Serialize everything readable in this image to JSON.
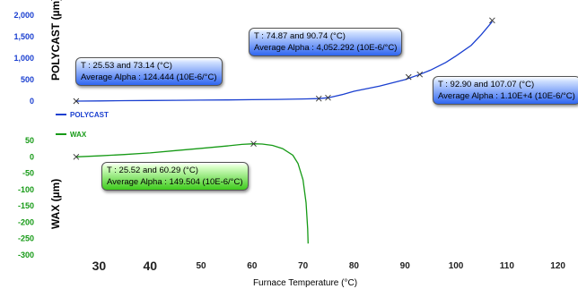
{
  "colors": {
    "polycast": "#1a3fd0",
    "wax": "#169a16"
  },
  "chart_data": [
    {
      "type": "line",
      "name": "top-panel",
      "ylabel": "POLYCAST (µm)",
      "ylim": [
        0,
        2000
      ],
      "y_ticks": [
        "2,000",
        "1,500",
        "1,000",
        "500",
        "0"
      ],
      "series": [
        {
          "name": "POLYCAST",
          "color": "#1a3fd0",
          "points": [
            [
              25.5,
              0
            ],
            [
              30,
              5
            ],
            [
              35,
              10
            ],
            [
              40,
              14
            ],
            [
              45,
              18
            ],
            [
              50,
              22
            ],
            [
              55,
              28
            ],
            [
              60,
              34
            ],
            [
              65,
              40
            ],
            [
              70,
              50
            ],
            [
              73.1,
              58
            ],
            [
              75,
              80
            ],
            [
              78,
              160
            ],
            [
              80,
              230
            ],
            [
              85,
              350
            ],
            [
              90,
              500
            ],
            [
              92.9,
              620
            ],
            [
              95,
              720
            ],
            [
              98,
              900
            ],
            [
              100,
              1050
            ],
            [
              103,
              1300
            ],
            [
              105,
              1550
            ],
            [
              107.1,
              1850
            ]
          ],
          "markers": [
            [
              25.5,
              0
            ],
            [
              73.1,
              58
            ],
            [
              74.9,
              80
            ],
            [
              90.7,
              560
            ],
            [
              92.9,
              620
            ],
            [
              107.1,
              1880
            ]
          ]
        }
      ],
      "annotations": [
        {
          "line1": "T : 25.53 and 73.14 (°C)",
          "line2": "Average Alpha :  124.444 (10E-6/°C)"
        },
        {
          "line1": "T : 74.87 and 90.74 (°C)",
          "line2": "Average Alpha : 4,052.292 (10E-6/°C)"
        },
        {
          "line1": "T : 92.90 and 107.07 (°C)",
          "line2": "Average Alpha : 1.10E+4 (10E-6/°C)"
        }
      ]
    },
    {
      "type": "line",
      "name": "bottom-panel",
      "ylabel": "WAX (µm)",
      "ylim": [
        -300,
        50
      ],
      "y_ticks": [
        "50",
        "0",
        "-50",
        "-100",
        "-150",
        "-200",
        "-250",
        "-300"
      ],
      "series": [
        {
          "name": "WAX",
          "color": "#169a16",
          "points": [
            [
              25.5,
              0
            ],
            [
              30,
              3
            ],
            [
              35,
              7
            ],
            [
              40,
              12
            ],
            [
              45,
              19
            ],
            [
              50,
              26
            ],
            [
              55,
              33
            ],
            [
              58,
              38
            ],
            [
              60.3,
              40
            ],
            [
              62,
              39
            ],
            [
              64,
              35
            ],
            [
              66,
              25
            ],
            [
              68,
              5
            ],
            [
              69,
              -20
            ],
            [
              70,
              -70
            ],
            [
              70.6,
              -140
            ],
            [
              70.9,
              -220
            ],
            [
              71.0,
              -265
            ]
          ],
          "markers": [
            [
              25.5,
              0
            ],
            [
              60.3,
              40
            ]
          ]
        }
      ],
      "annotations": [
        {
          "line1": "T : 25.52 and 60.29 (°C)",
          "line2": "Average Alpha :  149.504 (10E-6/°C)"
        }
      ]
    }
  ],
  "x_axis": {
    "xlabel": "Furnace Temperature (°C)",
    "xlim": [
      22,
      122
    ],
    "ticks": [
      "30",
      "40",
      "50",
      "60",
      "70",
      "80",
      "90",
      "100",
      "110",
      "120"
    ]
  },
  "legend": [
    "POLYCAST",
    "WAX"
  ]
}
